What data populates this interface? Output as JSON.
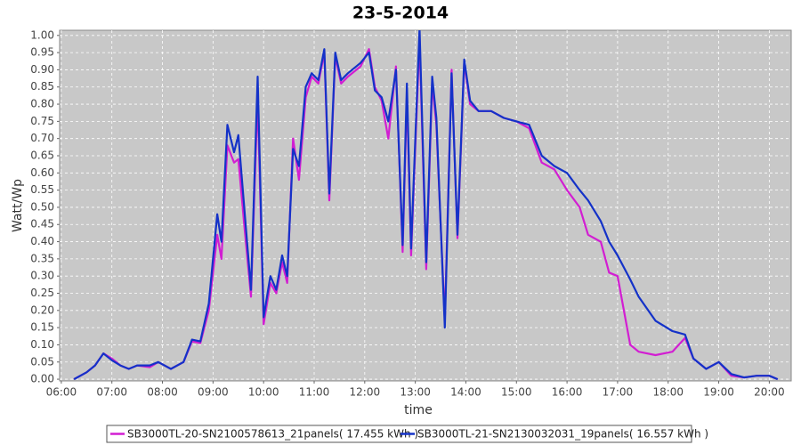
{
  "chart_data": {
    "type": "line",
    "title": "23-5-2014",
    "x_label": "time",
    "y_label": "Watt/Wp",
    "x": [
      "06:15",
      "06:30",
      "06:40",
      "06:50",
      "07:00",
      "07:10",
      "07:20",
      "07:30",
      "07:45",
      "07:55",
      "08:10",
      "08:25",
      "08:35",
      "08:45",
      "08:55",
      "09:05",
      "09:10",
      "09:17",
      "09:25",
      "09:30",
      "09:37",
      "09:45",
      "09:53",
      "10:00",
      "10:08",
      "10:15",
      "10:22",
      "10:28",
      "10:35",
      "10:42",
      "10:50",
      "10:57",
      "11:05",
      "11:12",
      "11:18",
      "11:25",
      "11:32",
      "11:40",
      "11:55",
      "12:05",
      "12:12",
      "12:20",
      "12:28",
      "12:37",
      "12:45",
      "12:50",
      "12:55",
      "13:05",
      "13:13",
      "13:20",
      "13:25",
      "13:35",
      "13:43",
      "13:50",
      "13:58",
      "14:05",
      "14:15",
      "14:30",
      "14:45",
      "15:00",
      "15:15",
      "15:30",
      "15:45",
      "16:00",
      "16:15",
      "16:25",
      "16:40",
      "16:50",
      "17:00",
      "17:15",
      "17:25",
      "17:45",
      "18:05",
      "18:20",
      "18:30",
      "18:45",
      "19:00",
      "19:15",
      "19:30",
      "19:45",
      "20:00",
      "20:10"
    ],
    "series": [
      {
        "name": "SB3000TL-20-SN2100578613_21panels( 17.455 kWh )",
        "color": "#d21ed2",
        "values": [
          0,
          0.02,
          0.04,
          0.075,
          0.06,
          0.04,
          0.03,
          0.04,
          0.035,
          0.05,
          0.03,
          0.05,
          0.11,
          0.105,
          0.2,
          0.42,
          0.35,
          0.68,
          0.63,
          0.64,
          0.45,
          0.24,
          0.82,
          0.16,
          0.28,
          0.25,
          0.34,
          0.28,
          0.7,
          0.58,
          0.82,
          0.88,
          0.86,
          0.95,
          0.52,
          0.94,
          0.86,
          0.88,
          0.91,
          0.96,
          0.85,
          0.81,
          0.7,
          0.91,
          0.37,
          0.83,
          0.36,
          0.99,
          0.32,
          0.86,
          0.74,
          0.17,
          0.9,
          0.41,
          0.92,
          0.8,
          0.78,
          0.78,
          0.76,
          0.75,
          0.73,
          0.63,
          0.61,
          0.55,
          0.5,
          0.42,
          0.4,
          0.31,
          0.3,
          0.1,
          0.08,
          0.07,
          0.08,
          0.12,
          0.06,
          0.03,
          0.05,
          0.01,
          0.005,
          0.01,
          0.01,
          0
        ]
      },
      {
        "name": "SB3000TL-21-SN2130032031_19panels( 16.557 kWh )",
        "color": "#1432c8",
        "values": [
          0,
          0.02,
          0.04,
          0.075,
          0.055,
          0.04,
          0.03,
          0.04,
          0.04,
          0.05,
          0.03,
          0.05,
          0.115,
          0.11,
          0.22,
          0.48,
          0.4,
          0.74,
          0.66,
          0.71,
          0.5,
          0.26,
          0.88,
          0.18,
          0.3,
          0.26,
          0.36,
          0.3,
          0.67,
          0.62,
          0.85,
          0.89,
          0.87,
          0.96,
          0.54,
          0.95,
          0.87,
          0.89,
          0.92,
          0.95,
          0.84,
          0.82,
          0.75,
          0.9,
          0.39,
          0.86,
          0.38,
          1.02,
          0.34,
          0.88,
          0.76,
          0.15,
          0.89,
          0.42,
          0.93,
          0.81,
          0.78,
          0.78,
          0.76,
          0.75,
          0.74,
          0.65,
          0.62,
          0.6,
          0.55,
          0.52,
          0.46,
          0.4,
          0.36,
          0.29,
          0.24,
          0.17,
          0.14,
          0.13,
          0.06,
          0.03,
          0.05,
          0.015,
          0.005,
          0.01,
          0.01,
          0
        ]
      }
    ],
    "xlim": [
      "05:58",
      "20:26"
    ],
    "xticks": [
      "06:00",
      "07:00",
      "08:00",
      "09:00",
      "10:00",
      "11:00",
      "12:00",
      "13:00",
      "14:00",
      "15:00",
      "16:00",
      "17:00",
      "18:00",
      "19:00",
      "20:00"
    ],
    "ylim": [
      -0.005,
      1.015
    ],
    "yticks": [
      {
        "value": 0,
        "label": "0.00"
      },
      {
        "value": 0.05,
        "label": "0.05"
      },
      {
        "value": 0.1,
        "label": "0.10"
      },
      {
        "value": 0.15,
        "label": "0.15"
      },
      {
        "value": 0.2,
        "label": "0.20"
      },
      {
        "value": 0.25,
        "label": "0.25"
      },
      {
        "value": 0.3,
        "label": "0.30"
      },
      {
        "value": 0.35,
        "label": "0.35"
      },
      {
        "value": 0.4,
        "label": "0.40"
      },
      {
        "value": 0.45,
        "label": "0.45"
      },
      {
        "value": 0.5,
        "label": "0.50"
      },
      {
        "value": 0.55,
        "label": "0.55"
      },
      {
        "value": 0.6,
        "label": "0.60"
      },
      {
        "value": 0.65,
        "label": "0.65"
      },
      {
        "value": 0.7,
        "label": "0.70"
      },
      {
        "value": 0.75,
        "label": "0.75"
      },
      {
        "value": 0.8,
        "label": "0.80"
      },
      {
        "value": 0.85,
        "label": "0.85"
      },
      {
        "value": 0.9,
        "label": "0.90"
      },
      {
        "value": 0.95,
        "label": "0.95"
      },
      {
        "value": 1,
        "label": "1.00"
      }
    ],
    "grid": true,
    "legend": "bottom"
  }
}
